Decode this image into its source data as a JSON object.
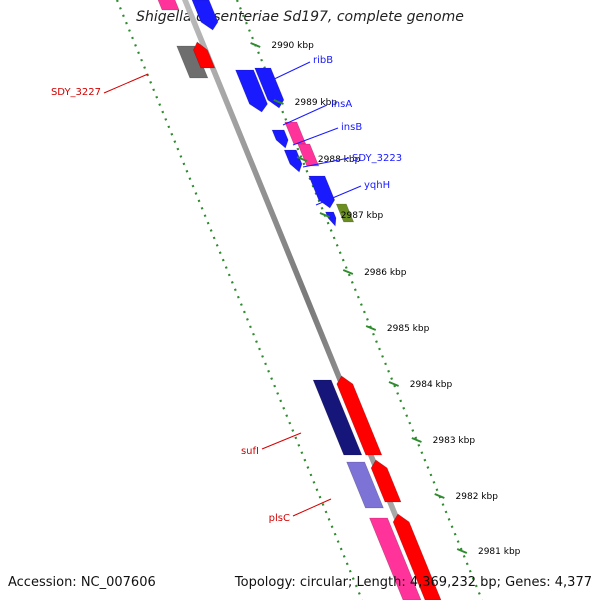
{
  "title": "Shigella dysenteriae Sd197, complete genome",
  "footer": {
    "accession": "Accession: NC_007606",
    "topology": "Topology: circular; Length: 4,369,232 bp; Genes: 4,377"
  },
  "colors": {
    "background": "#ffffff",
    "axis": "#8a8a8a",
    "ticks": "#2e8b2e",
    "forward_gene": "#ff0000",
    "pink_gene": "#ff3399",
    "blue_gene": "#1a1aff",
    "navy_gene": "#16167a",
    "lavender_gene": "#7d72d6",
    "olive_gene": "#6b8e23",
    "gray_gene": "#6e6e6e",
    "red_label": "#d40000",
    "blue_label": "#1a1aff"
  },
  "ticks": [
    {
      "label": "2990 kbp"
    },
    {
      "label": "2989 kbp"
    },
    {
      "label": "2988 kbp"
    },
    {
      "label": "2987 kbp"
    },
    {
      "label": "2986 kbp"
    },
    {
      "label": "2985 kbp"
    },
    {
      "label": "2984 kbp"
    },
    {
      "label": "2983 kbp"
    },
    {
      "label": "2982 kbp"
    },
    {
      "label": "2981 kbp"
    }
  ],
  "gene_labels": [
    {
      "text": "ribB",
      "color": "blue_label"
    },
    {
      "text": "insA",
      "color": "blue_label"
    },
    {
      "text": "insB",
      "color": "blue_label"
    },
    {
      "text": "SDY_3223",
      "color": "blue_label"
    },
    {
      "text": "yqhH",
      "color": "blue_label"
    },
    {
      "text": "SDY_3227",
      "color": "red_label"
    },
    {
      "text": "sufI",
      "color": "red_label"
    },
    {
      "text": "plsC",
      "color": "red_label"
    }
  ]
}
